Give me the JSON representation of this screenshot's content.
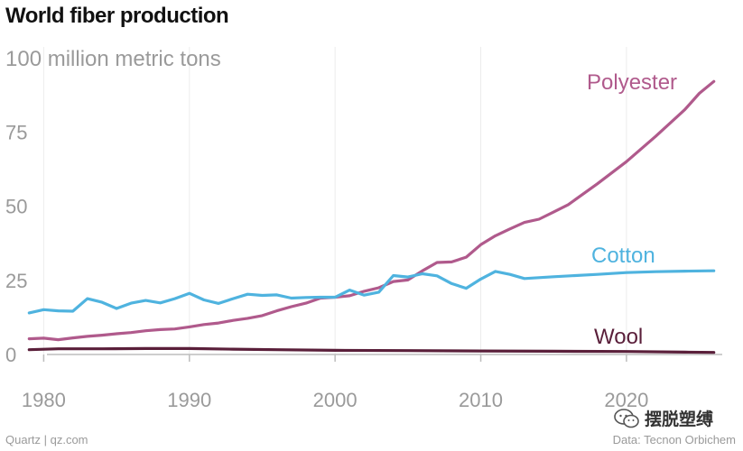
{
  "title": "World fiber production",
  "credit_left": "Quartz | qz.com",
  "credit_right": "Data: Tecnon Orbichem",
  "watermark_text": "摆脱塑缚",
  "watermark_icon": "wechat-icon",
  "chart_data": {
    "type": "line",
    "unit_label": "100 million metric tons",
    "xlim": [
      1977,
      2028
    ],
    "ylim": [
      0,
      100
    ],
    "y_ticks": [
      0,
      25,
      50,
      75,
      100
    ],
    "x_ticks": [
      1980,
      1990,
      2000,
      2010,
      2020
    ],
    "grid": "vertical",
    "series": [
      {
        "name": "Polyester",
        "color": "#b05a8c",
        "points": [
          [
            1979,
            5.3
          ],
          [
            1980,
            5.5
          ],
          [
            1981,
            5
          ],
          [
            1982,
            5.6
          ],
          [
            1983,
            6.1
          ],
          [
            1984,
            6.5
          ],
          [
            1985,
            7
          ],
          [
            1986,
            7.4
          ],
          [
            1987,
            8
          ],
          [
            1988,
            8.4
          ],
          [
            1989,
            8.6
          ],
          [
            1990,
            9.3
          ],
          [
            1991,
            10.1
          ],
          [
            1992,
            10.6
          ],
          [
            1993,
            11.5
          ],
          [
            1994,
            12.2
          ],
          [
            1995,
            13.1
          ],
          [
            1996,
            14.7
          ],
          [
            1997,
            16.1
          ],
          [
            1998,
            17.3
          ],
          [
            1999,
            19
          ],
          [
            2000,
            19.3
          ],
          [
            2001,
            19.8
          ],
          [
            2002,
            21.3
          ],
          [
            2003,
            22.5
          ],
          [
            2004,
            24.6
          ],
          [
            2005,
            25.1
          ],
          [
            2006,
            28.2
          ],
          [
            2007,
            31
          ],
          [
            2008,
            31.2
          ],
          [
            2009,
            32.8
          ],
          [
            2010,
            37
          ],
          [
            2011,
            40
          ],
          [
            2012,
            42.3
          ],
          [
            2013,
            44.5
          ],
          [
            2014,
            45.6
          ],
          [
            2015,
            48
          ],
          [
            2016,
            50.5
          ],
          [
            2018,
            57.5
          ],
          [
            2020,
            65
          ],
          [
            2022,
            73.5
          ],
          [
            2024,
            82.5
          ],
          [
            2025,
            88
          ],
          [
            2026,
            92
          ]
        ]
      },
      {
        "name": "Cotton",
        "color": "#4fb3df",
        "points": [
          [
            1979,
            14
          ],
          [
            1980,
            15.1
          ],
          [
            1981,
            14.7
          ],
          [
            1982,
            14.6
          ],
          [
            1983,
            18.8
          ],
          [
            1984,
            17.6
          ],
          [
            1985,
            15.5
          ],
          [
            1986,
            17.3
          ],
          [
            1987,
            18.2
          ],
          [
            1988,
            17.4
          ],
          [
            1989,
            18.8
          ],
          [
            1990,
            20.6
          ],
          [
            1991,
            18.4
          ],
          [
            1992,
            17.2
          ],
          [
            1993,
            18.8
          ],
          [
            1994,
            20.3
          ],
          [
            1995,
            19.9
          ],
          [
            1996,
            20.1
          ],
          [
            1997,
            19
          ],
          [
            1998,
            19.2
          ],
          [
            1999,
            19.3
          ],
          [
            2000,
            19.3
          ],
          [
            2001,
            21.7
          ],
          [
            2002,
            20
          ],
          [
            2003,
            21
          ],
          [
            2004,
            26.6
          ],
          [
            2005,
            26.1
          ],
          [
            2006,
            27.2
          ],
          [
            2007,
            26.5
          ],
          [
            2008,
            23.9
          ],
          [
            2009,
            22.3
          ],
          [
            2010,
            25.4
          ],
          [
            2011,
            28
          ],
          [
            2012,
            27
          ],
          [
            2013,
            25.6
          ],
          [
            2015,
            26.2
          ],
          [
            2018,
            27
          ],
          [
            2020,
            27.6
          ],
          [
            2022,
            27.9
          ],
          [
            2024,
            28.1
          ],
          [
            2026,
            28.2
          ]
        ]
      },
      {
        "name": "Wool",
        "color": "#5a1f3a",
        "points": [
          [
            1979,
            1.6
          ],
          [
            1981,
            1.9
          ],
          [
            1984,
            1.9
          ],
          [
            1987,
            2
          ],
          [
            1990,
            2
          ],
          [
            1993,
            1.8
          ],
          [
            1996,
            1.6
          ],
          [
            2000,
            1.4
          ],
          [
            2005,
            1.3
          ],
          [
            2010,
            1.2
          ],
          [
            2015,
            1.1
          ],
          [
            2020,
            1
          ],
          [
            2024,
            0.8
          ],
          [
            2026,
            0.7
          ]
        ]
      }
    ]
  }
}
